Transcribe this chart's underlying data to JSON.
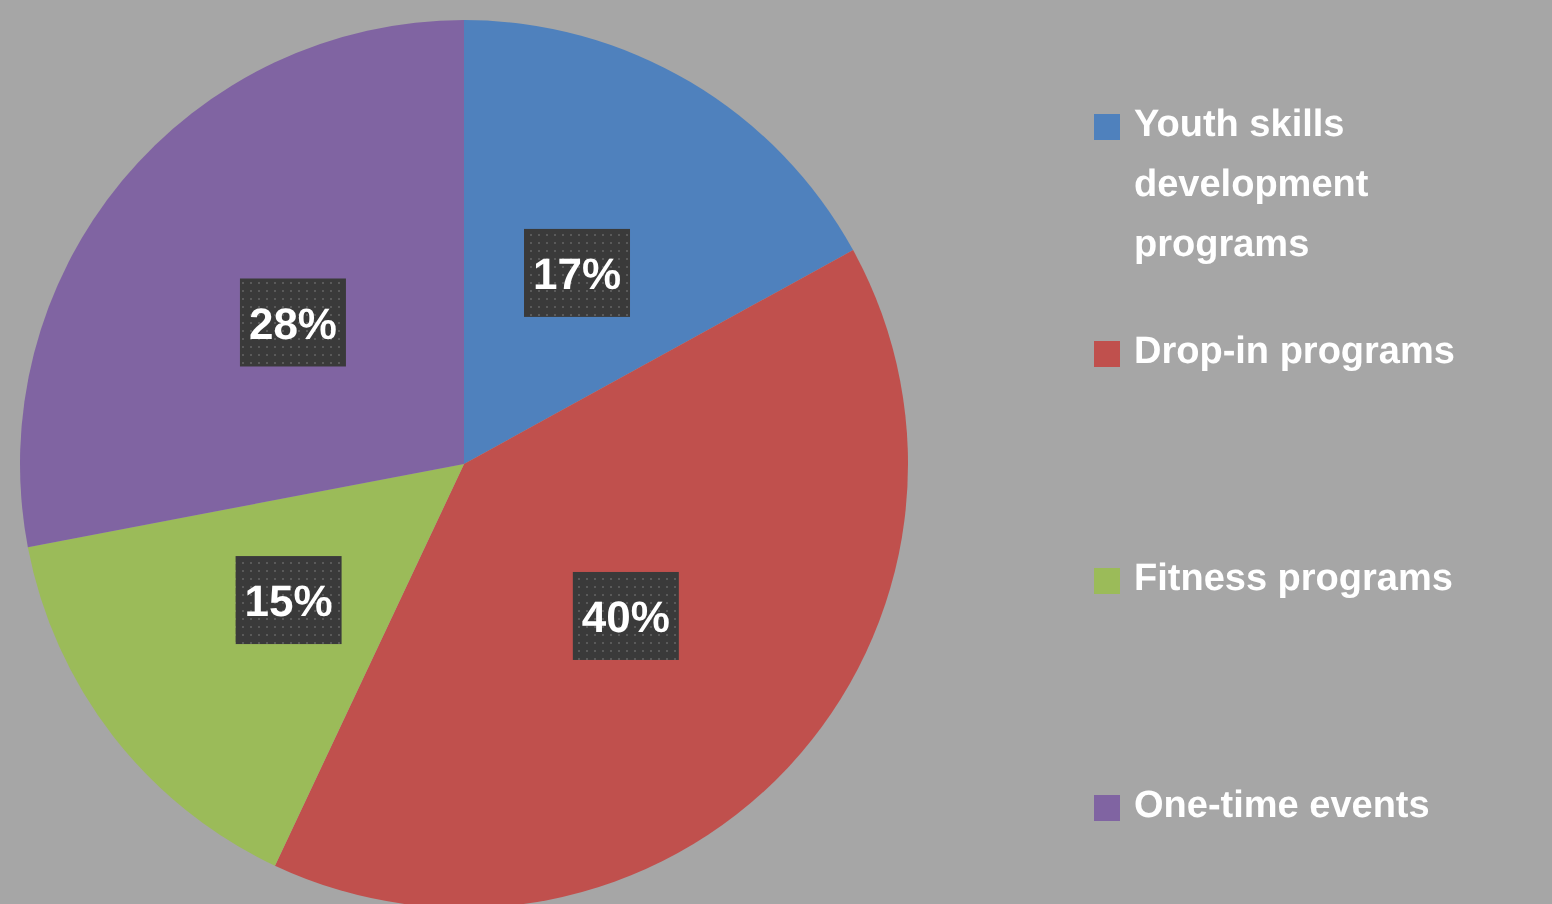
{
  "chart_data": {
    "type": "pie",
    "categories": [
      "Youth skills development programs",
      "Drop-in programs",
      "Fitness programs",
      "One-time events"
    ],
    "values": [
      17,
      40,
      15,
      28
    ],
    "colors": [
      "#4f81bd",
      "#c0504d",
      "#9bbb59",
      "#8064a2"
    ],
    "value_labels": [
      "17%",
      "40%",
      "15%",
      "28%"
    ],
    "legend": "right"
  }
}
